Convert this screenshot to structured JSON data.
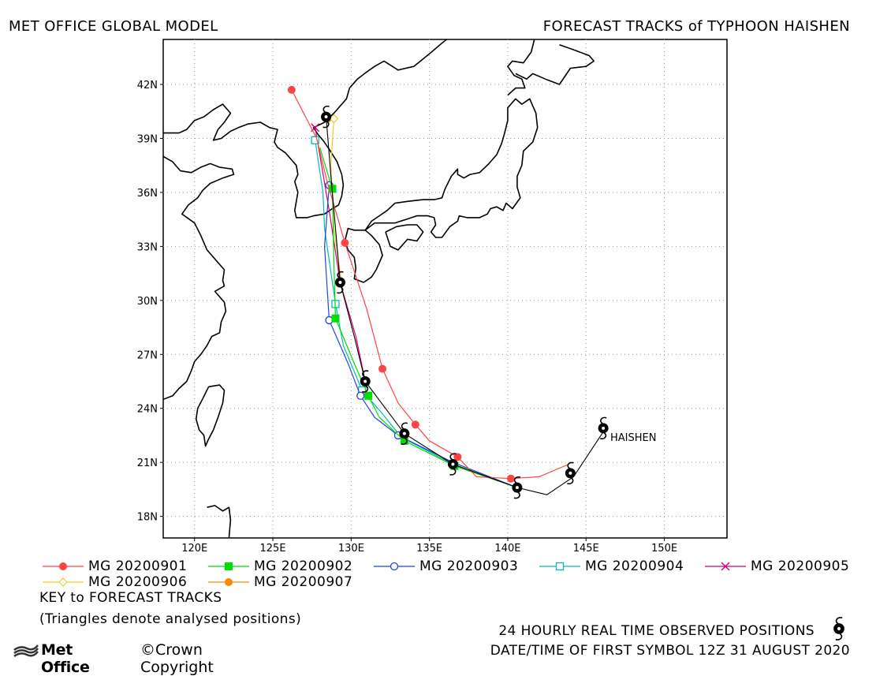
{
  "titles": {
    "left": "MET OFFICE GLOBAL MODEL",
    "right": "FORECAST TRACKS of TYPHOON HAISHEN"
  },
  "axes": {
    "lon_range": [
      118,
      154
    ],
    "lat_range": [
      16.8,
      44.5
    ],
    "lon_ticks": [
      120,
      125,
      130,
      135,
      140,
      145,
      150
    ],
    "lon_tick_labels": [
      "120E",
      "125E",
      "130E",
      "135E",
      "140E",
      "145E",
      "150E"
    ],
    "lat_ticks": [
      18,
      21,
      24,
      27,
      30,
      33,
      36,
      39,
      42
    ],
    "lat_tick_labels": [
      "18N",
      "21N",
      "24N",
      "27N",
      "30N",
      "33N",
      "36N",
      "39N",
      "42N"
    ],
    "grid": true
  },
  "storm_label": "HAISHEN",
  "observed_track": {
    "points": [
      [
        146.1,
        22.9
      ],
      [
        144.0,
        20.4
      ],
      [
        140.6,
        19.6
      ],
      [
        136.5,
        20.9
      ],
      [
        133.4,
        22.6
      ],
      [
        130.9,
        25.5
      ],
      [
        129.3,
        31.0
      ],
      [
        128.4,
        40.2
      ]
    ],
    "line_points": [
      [
        146.1,
        22.9
      ],
      [
        146.1,
        22.7
      ],
      [
        144.2,
        20.2
      ],
      [
        142.5,
        19.2
      ],
      [
        140.6,
        19.6
      ],
      [
        136.5,
        20.9
      ],
      [
        133.4,
        22.6
      ],
      [
        130.9,
        25.5
      ],
      [
        130.2,
        28.0
      ],
      [
        129.3,
        31.0
      ],
      [
        129.0,
        34.0
      ],
      [
        128.7,
        37.0
      ],
      [
        128.4,
        40.2
      ]
    ]
  },
  "forecast_tracks": [
    {
      "name": "MG 20200901",
      "color": "#ff4444",
      "marker": "filled-circle",
      "points": [
        [
          143.9,
          20.9
        ],
        [
          142.0,
          20.2
        ],
        [
          140.2,
          20.1
        ],
        [
          138.0,
          20.2
        ],
        [
          136.8,
          21.3
        ],
        [
          135.0,
          22.2
        ],
        [
          134.1,
          23.1
        ],
        [
          133.0,
          24.3
        ],
        [
          132.0,
          26.2
        ],
        [
          131.0,
          29.5
        ],
        [
          129.6,
          33.2
        ],
        [
          128.5,
          36.5
        ],
        [
          127.8,
          39.0
        ],
        [
          126.2,
          41.7
        ]
      ],
      "markers": [
        [
          140.2,
          20.1
        ],
        [
          136.8,
          21.3
        ],
        [
          134.1,
          23.1
        ],
        [
          132.0,
          26.2
        ],
        [
          129.6,
          33.2
        ],
        [
          126.2,
          41.7
        ]
      ]
    },
    {
      "name": "MG 20200902",
      "color": "#00dd00",
      "marker": "filled-square",
      "points": [
        [
          140.6,
          19.6
        ],
        [
          136.6,
          20.8
        ],
        [
          133.4,
          22.2
        ],
        [
          131.8,
          23.5
        ],
        [
          131.1,
          24.7
        ],
        [
          130.2,
          26.5
        ],
        [
          129.0,
          29.0
        ],
        [
          128.9,
          32.0
        ],
        [
          128.8,
          36.2
        ],
        [
          128.0,
          38.5
        ]
      ],
      "markers": [
        [
          136.6,
          20.8
        ],
        [
          133.4,
          22.2
        ],
        [
          131.1,
          24.7
        ],
        [
          129.0,
          29.0
        ],
        [
          128.8,
          36.2
        ]
      ]
    },
    {
      "name": "MG 20200903",
      "color": "#2244dd",
      "marker": "open-circle",
      "points": [
        [
          140.6,
          19.6
        ],
        [
          136.5,
          21.0
        ],
        [
          133.0,
          22.5
        ],
        [
          131.5,
          23.5
        ],
        [
          130.6,
          24.7
        ],
        [
          129.8,
          26.5
        ],
        [
          128.6,
          28.9
        ],
        [
          128.3,
          33.0
        ],
        [
          128.6,
          36.4
        ]
      ],
      "markers": [
        [
          133.0,
          22.5
        ],
        [
          130.6,
          24.7
        ],
        [
          128.6,
          28.9
        ],
        [
          128.6,
          36.4
        ]
      ]
    },
    {
      "name": "MG 20200904",
      "color": "#00bbbb",
      "marker": "open-square",
      "points": [
        [
          140.6,
          19.6
        ],
        [
          136.5,
          20.9
        ],
        [
          133.2,
          22.4
        ],
        [
          131.9,
          23.8
        ],
        [
          130.7,
          25.0
        ],
        [
          129.5,
          27.5
        ],
        [
          129.0,
          29.8
        ],
        [
          128.3,
          34.0
        ],
        [
          128.2,
          36.0
        ],
        [
          127.7,
          38.9
        ]
      ],
      "markers": [
        [
          130.7,
          25.0
        ],
        [
          129.0,
          29.8
        ],
        [
          127.7,
          38.9
        ]
      ]
    },
    {
      "name": "MG 20200905",
      "color": "#cc0077",
      "marker": "cross",
      "points": [
        [
          130.9,
          25.5
        ],
        [
          130.3,
          28.0
        ],
        [
          129.3,
          31.0
        ],
        [
          128.6,
          35.0
        ],
        [
          127.7,
          39.6
        ]
      ],
      "markers": [
        [
          127.7,
          39.6
        ]
      ]
    },
    {
      "name": "MG 20200906",
      "color": "#eecc22",
      "marker": "open-diamond",
      "points": [
        [
          129.4,
          30.9
        ],
        [
          128.9,
          34.0
        ],
        [
          128.7,
          37.5
        ],
        [
          128.9,
          40.1
        ]
      ],
      "markers": [
        [
          128.9,
          40.1
        ]
      ]
    },
    {
      "name": "MG 20200907",
      "color": "#ff8800",
      "marker": "filled-circle",
      "points": [
        [
          128.5,
          40.1
        ]
      ],
      "markers": [
        [
          128.5,
          40.1
        ]
      ]
    }
  ],
  "key": {
    "title": "KEY to FORECAST TRACKS",
    "note": "(Triangles denote analysed positions)"
  },
  "observed_label": "24 HOURLY REAL TIME OBSERVED POSITIONS",
  "date_label": "DATE/TIME OF FIRST SYMBOL 12Z 31 AUGUST 2020",
  "brand": {
    "name": "Met Office",
    "copyright": "©Crown Copyright"
  },
  "coastlines": [
    [
      [
        118.0,
        39.3
      ],
      [
        119.0,
        39.3
      ],
      [
        119.5,
        39.5
      ],
      [
        120.0,
        40.0
      ],
      [
        120.6,
        40.2
      ],
      [
        121.2,
        40.6
      ],
      [
        121.8,
        40.9
      ],
      [
        122.3,
        40.4
      ],
      [
        121.9,
        39.9
      ],
      [
        121.5,
        39.5
      ],
      [
        121.2,
        38.9
      ],
      [
        121.7,
        39.0
      ],
      [
        122.3,
        39.4
      ],
      [
        122.8,
        39.6
      ],
      [
        123.4,
        39.8
      ],
      [
        124.2,
        39.9
      ],
      [
        124.8,
        39.6
      ],
      [
        125.3,
        39.5
      ],
      [
        125.1,
        38.8
      ],
      [
        125.3,
        38.5
      ],
      [
        125.8,
        38.2
      ],
      [
        126.2,
        37.8
      ],
      [
        126.5,
        37.5
      ],
      [
        126.6,
        37.0
      ],
      [
        126.4,
        36.6
      ],
      [
        126.6,
        36.0
      ],
      [
        126.5,
        35.5
      ],
      [
        126.4,
        35.0
      ],
      [
        126.5,
        34.6
      ],
      [
        127.2,
        34.6
      ],
      [
        127.6,
        34.7
      ],
      [
        128.3,
        34.8
      ],
      [
        128.8,
        35.1
      ],
      [
        129.2,
        35.3
      ],
      [
        129.4,
        35.8
      ],
      [
        129.5,
        36.4
      ],
      [
        129.4,
        37.0
      ],
      [
        129.1,
        37.7
      ],
      [
        128.6,
        38.4
      ],
      [
        128.2,
        38.9
      ],
      [
        127.9,
        39.2
      ],
      [
        127.6,
        39.6
      ],
      [
        128.3,
        39.9
      ],
      [
        128.9,
        40.4
      ],
      [
        129.4,
        40.9
      ],
      [
        129.7,
        41.2
      ],
      [
        129.9,
        41.8
      ],
      [
        130.4,
        42.3
      ],
      [
        131.0,
        42.7
      ],
      [
        131.5,
        43.0
      ],
      [
        132.1,
        43.3
      ],
      [
        133.0,
        42.8
      ],
      [
        134.0,
        43.0
      ],
      [
        135.0,
        43.7
      ],
      [
        135.8,
        44.3
      ],
      [
        136.1,
        44.5
      ]
    ],
    [
      [
        118.0,
        38.0
      ],
      [
        118.6,
        37.7
      ],
      [
        119.1,
        37.2
      ],
      [
        119.8,
        37.1
      ],
      [
        120.4,
        37.4
      ],
      [
        121.0,
        37.6
      ],
      [
        121.6,
        37.4
      ],
      [
        122.4,
        37.3
      ],
      [
        122.5,
        37.0
      ],
      [
        121.8,
        36.8
      ],
      [
        121.0,
        36.5
      ],
      [
        120.5,
        36.1
      ],
      [
        120.2,
        35.7
      ],
      [
        119.6,
        35.3
      ],
      [
        119.2,
        34.8
      ],
      [
        120.0,
        34.3
      ],
      [
        120.4,
        33.6
      ],
      [
        120.8,
        32.8
      ],
      [
        121.4,
        32.2
      ],
      [
        121.9,
        31.7
      ],
      [
        121.8,
        31.1
      ],
      [
        121.9,
        30.8
      ],
      [
        121.3,
        30.5
      ],
      [
        121.9,
        29.9
      ],
      [
        122.0,
        29.4
      ],
      [
        121.7,
        28.8
      ],
      [
        121.6,
        28.2
      ],
      [
        121.1,
        28.0
      ],
      [
        120.8,
        27.5
      ],
      [
        120.4,
        27.0
      ],
      [
        120.0,
        26.6
      ],
      [
        119.8,
        26.1
      ],
      [
        119.5,
        25.5
      ],
      [
        119.0,
        25.1
      ],
      [
        118.6,
        24.7
      ],
      [
        118.0,
        24.5
      ]
    ],
    [
      [
        120.9,
        25.2
      ],
      [
        121.6,
        25.3
      ],
      [
        121.9,
        25.0
      ],
      [
        121.8,
        24.3
      ],
      [
        121.5,
        23.5
      ],
      [
        121.2,
        22.8
      ],
      [
        120.9,
        22.3
      ],
      [
        120.7,
        21.9
      ],
      [
        120.6,
        22.5
      ],
      [
        120.3,
        22.8
      ],
      [
        120.1,
        23.4
      ],
      [
        120.2,
        24.0
      ],
      [
        120.5,
        24.5
      ],
      [
        120.9,
        25.2
      ]
    ],
    [
      [
        120.8,
        18.5
      ],
      [
        121.3,
        18.6
      ],
      [
        121.8,
        18.3
      ],
      [
        122.2,
        18.5
      ],
      [
        122.3,
        17.8
      ],
      [
        122.2,
        16.8
      ]
    ],
    [
      [
        129.6,
        33.3
      ],
      [
        129.8,
        34.0
      ],
      [
        130.2,
        33.9
      ],
      [
        130.9,
        33.9
      ],
      [
        131.3,
        33.6
      ],
      [
        131.8,
        33.1
      ],
      [
        132.0,
        32.5
      ],
      [
        131.6,
        31.7
      ],
      [
        131.3,
        31.3
      ],
      [
        130.8,
        31.0
      ],
      [
        130.2,
        31.2
      ],
      [
        130.3,
        31.8
      ],
      [
        130.2,
        32.4
      ],
      [
        129.8,
        32.8
      ],
      [
        129.6,
        33.3
      ]
    ],
    [
      [
        130.9,
        33.9
      ],
      [
        131.5,
        34.3
      ],
      [
        132.2,
        34.3
      ],
      [
        132.8,
        34.3
      ],
      [
        133.5,
        34.5
      ],
      [
        134.2,
        34.7
      ],
      [
        134.9,
        34.7
      ],
      [
        135.3,
        34.6
      ],
      [
        135.4,
        34.2
      ],
      [
        135.1,
        33.8
      ],
      [
        135.4,
        33.5
      ],
      [
        135.8,
        33.5
      ],
      [
        136.3,
        34.1
      ],
      [
        136.8,
        34.4
      ],
      [
        136.9,
        34.7
      ],
      [
        137.4,
        34.6
      ],
      [
        138.2,
        34.6
      ],
      [
        138.7,
        34.8
      ],
      [
        138.9,
        35.1
      ],
      [
        139.3,
        35.2
      ],
      [
        139.7,
        35.0
      ],
      [
        139.9,
        35.4
      ],
      [
        140.3,
        35.1
      ],
      [
        140.8,
        35.7
      ],
      [
        140.6,
        36.3
      ],
      [
        140.6,
        36.9
      ],
      [
        140.9,
        37.5
      ],
      [
        141.0,
        38.3
      ],
      [
        141.6,
        38.8
      ],
      [
        141.9,
        39.6
      ],
      [
        141.8,
        40.4
      ],
      [
        141.4,
        41.2
      ],
      [
        140.9,
        40.9
      ],
      [
        140.5,
        41.2
      ],
      [
        140.0,
        40.7
      ],
      [
        140.0,
        40.0
      ],
      [
        139.8,
        39.3
      ],
      [
        139.6,
        38.7
      ],
      [
        139.3,
        38.1
      ],
      [
        138.8,
        37.6
      ],
      [
        138.2,
        37.1
      ],
      [
        137.6,
        37.0
      ],
      [
        137.2,
        36.8
      ],
      [
        136.8,
        37.0
      ],
      [
        136.8,
        37.3
      ],
      [
        136.4,
        36.9
      ],
      [
        136.0,
        36.2
      ],
      [
        135.8,
        35.7
      ],
      [
        135.3,
        35.6
      ],
      [
        134.6,
        35.6
      ],
      [
        133.6,
        35.5
      ],
      [
        132.8,
        35.4
      ],
      [
        132.3,
        35.0
      ],
      [
        131.8,
        34.7
      ],
      [
        131.3,
        34.4
      ],
      [
        130.9,
        33.9
      ]
    ],
    [
      [
        132.2,
        33.8
      ],
      [
        132.9,
        34.1
      ],
      [
        133.6,
        34.2
      ],
      [
        134.2,
        34.2
      ],
      [
        134.6,
        33.8
      ],
      [
        134.2,
        33.3
      ],
      [
        133.6,
        33.4
      ],
      [
        133.0,
        32.8
      ],
      [
        132.5,
        33.0
      ],
      [
        132.2,
        33.8
      ]
    ],
    [
      [
        140.0,
        41.4
      ],
      [
        140.5,
        41.8
      ],
      [
        141.1,
        41.8
      ],
      [
        140.9,
        42.3
      ],
      [
        140.4,
        42.5
      ],
      [
        140.0,
        43.0
      ],
      [
        140.3,
        43.3
      ],
      [
        141.0,
        43.2
      ],
      [
        141.5,
        43.8
      ],
      [
        141.7,
        44.5
      ]
    ],
    [
      [
        143.3,
        44.2
      ],
      [
        144.3,
        43.9
      ],
      [
        145.2,
        43.6
      ],
      [
        145.5,
        43.3
      ],
      [
        145.0,
        43.0
      ],
      [
        144.0,
        42.9
      ],
      [
        143.3,
        42.0
      ],
      [
        142.4,
        42.3
      ],
      [
        141.6,
        42.6
      ],
      [
        141.2,
        42.3
      ],
      [
        140.5,
        42.6
      ]
    ]
  ]
}
